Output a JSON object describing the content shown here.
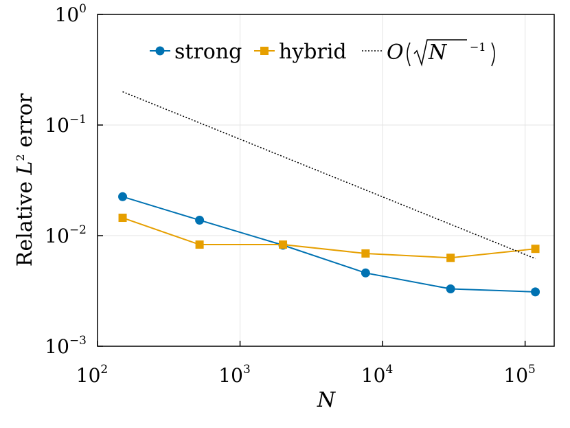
{
  "chart_data": {
    "type": "line",
    "title": "",
    "xlabel": "N",
    "ylabel_prefix": "Relative ",
    "ylabel_var": "L",
    "ylabel_sup": "2",
    "ylabel_suffix": " error",
    "xscale": "log",
    "yscale": "log",
    "xlim": [
      100,
      160000
    ],
    "ylim": [
      0.001,
      1
    ],
    "grid": true,
    "legend_position": "top",
    "x_ticks": [
      {
        "value": 100,
        "base": "10",
        "exp": "2"
      },
      {
        "value": 1000,
        "base": "10",
        "exp": "3"
      },
      {
        "value": 10000,
        "base": "10",
        "exp": "4"
      },
      {
        "value": 100000,
        "base": "10",
        "exp": "5"
      }
    ],
    "y_ticks": [
      {
        "value": 1,
        "base": "10",
        "exp": "0"
      },
      {
        "value": 0.1,
        "base": "10",
        "exp": "−1"
      },
      {
        "value": 0.01,
        "base": "10",
        "exp": "−2"
      },
      {
        "value": 0.001,
        "base": "10",
        "exp": "−3"
      }
    ],
    "series": [
      {
        "name": "strong",
        "color": "#0072b2",
        "marker": "circle",
        "style": "solid",
        "x": [
          150,
          520,
          2000,
          7600,
          30000,
          118000
        ],
        "values": [
          0.0225,
          0.0138,
          0.0082,
          0.0046,
          0.0033,
          0.0031
        ]
      },
      {
        "name": "hybrid",
        "color": "#e69f00",
        "marker": "square",
        "style": "solid",
        "x": [
          150,
          520,
          2000,
          7600,
          30000,
          118000
        ],
        "values": [
          0.0145,
          0.0083,
          0.0083,
          0.0069,
          0.0063,
          0.0076
        ]
      },
      {
        "name": "O(√N⁻¹)",
        "color": "#000000",
        "marker": "none",
        "style": "dotted",
        "x": [
          150,
          118000
        ],
        "values": [
          0.2,
          0.0062
        ]
      }
    ],
    "legend_ref": {
      "O": "O",
      "N": "N",
      "exp": "−1"
    }
  }
}
